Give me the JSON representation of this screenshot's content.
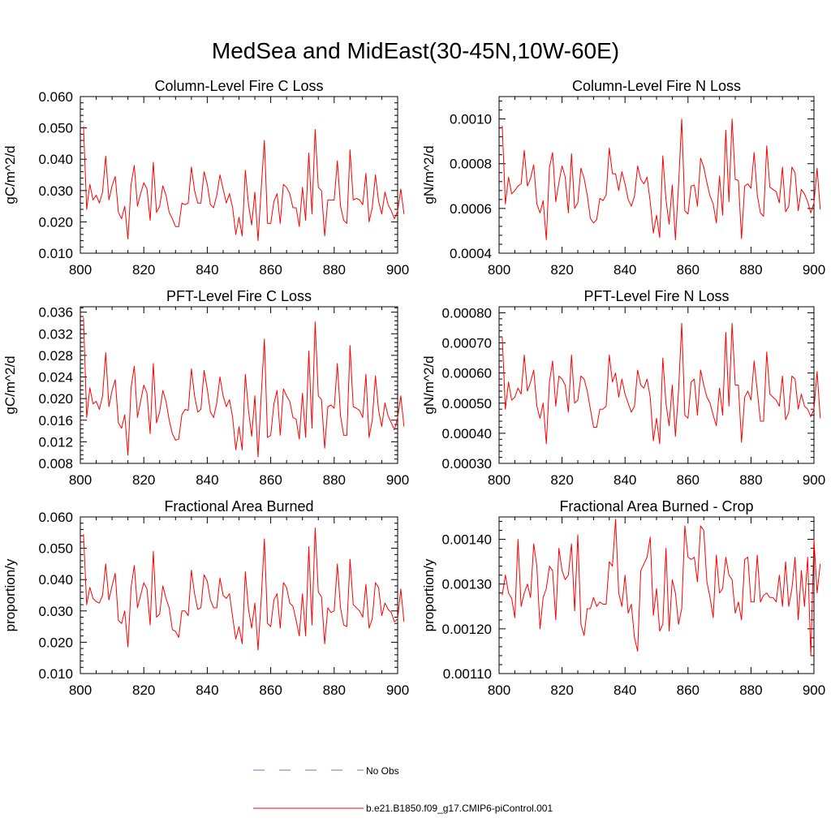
{
  "page_title": "MedSea and MidEast(30-45N,10W-60E)",
  "colors": {
    "model": "#ff0000",
    "obs": "#6f6fd0",
    "axis": "#000000"
  },
  "legend": [
    {
      "label": "No Obs",
      "style": "dashed",
      "color": "#6f6fd0"
    },
    {
      "label": "b.e21.B1850.f09_g17.CMIP6-piControl.001",
      "style": "solid",
      "color": "#ff0000"
    }
  ],
  "chart_data": [
    {
      "type": "line",
      "title": "Column-Level Fire C Loss",
      "ylabel": "gC/m^2/d",
      "xlabel": "",
      "xlim": [
        800,
        900
      ],
      "ylim": [
        0.01,
        0.06
      ],
      "xticks": [
        "800",
        "820",
        "840",
        "860",
        "880",
        "900"
      ],
      "yticks": [
        "0.010",
        "0.020",
        "0.030",
        "0.040",
        "0.050",
        "0.060"
      ],
      "series": [
        {
          "name": "b.e21.B1850.f09_g17.CMIP6-piControl.001",
          "color": "#ff0000",
          "x_start": 801,
          "values": [
            0.0505,
            0.024,
            0.032,
            0.027,
            0.0285,
            0.026,
            0.0295,
            0.041,
            0.027,
            0.0315,
            0.0345,
            0.023,
            0.021,
            0.025,
            0.0145,
            0.032,
            0.038,
            0.025,
            0.029,
            0.0325,
            0.0305,
            0.0205,
            0.039,
            0.023,
            0.025,
            0.0315,
            0.0285,
            0.023,
            0.021,
            0.0185,
            0.0185,
            0.026,
            0.0255,
            0.026,
            0.0375,
            0.03,
            0.026,
            0.026,
            0.036,
            0.032,
            0.0255,
            0.0245,
            0.0285,
            0.035,
            0.0305,
            0.026,
            0.029,
            0.0245,
            0.016,
            0.0215,
            0.0155,
            0.0365,
            0.0255,
            0.019,
            0.0295,
            0.014,
            0.0305,
            0.046,
            0.0195,
            0.0195,
            0.0265,
            0.029,
            0.0195,
            0.032,
            0.031,
            0.029,
            0.0245,
            0.0245,
            0.0185,
            0.031,
            0.0205,
            0.042,
            0.0225,
            0.0495,
            0.031,
            0.03,
            0.0155,
            0.027,
            0.027,
            0.027,
            0.0395,
            0.025,
            0.0205,
            0.0195,
            0.043,
            0.027,
            0.0275,
            0.027,
            0.0255,
            0.0355,
            0.02,
            0.0245,
            0.035,
            0.0265,
            0.0225,
            0.0295,
            0.0255,
            0.0235,
            0.021,
            0.0235,
            0.0305,
            0.0225
          ]
        }
      ]
    },
    {
      "type": "line",
      "title": "Column-Level Fire N Loss",
      "ylabel": "gN/m^2/d",
      "xlabel": "",
      "xlim": [
        800,
        900
      ],
      "ylim": [
        0.0004,
        0.0011
      ],
      "xticks": [
        "800",
        "820",
        "840",
        "860",
        "880",
        "900"
      ],
      "yticks": [
        "0.0004",
        "0.0006",
        "0.0008",
        "0.0010"
      ],
      "series": [
        {
          "name": "b.e21.B1850.f09_g17.CMIP6-piControl.001",
          "color": "#ff0000",
          "x_start": 801,
          "values": [
            0.00097,
            0.00062,
            0.00074,
            0.000665,
            0.00068,
            0.0007,
            0.00071,
            0.00086,
            0.0007,
            0.000735,
            0.000795,
            0.00062,
            0.00058,
            0.000635,
            0.00046,
            0.000785,
            0.00085,
            0.00063,
            0.000715,
            0.00079,
            0.00074,
            0.00058,
            0.000845,
            0.0006,
            0.000625,
            0.00078,
            0.000735,
            0.00066,
            0.000555,
            0.000535,
            0.00055,
            0.000645,
            0.000635,
            0.00066,
            0.00087,
            0.000755,
            0.000755,
            0.00068,
            0.000765,
            0.00071,
            0.00064,
            0.00061,
            0.000655,
            0.00079,
            0.00073,
            0.00071,
            0.00074,
            0.00063,
            0.00049,
            0.00057,
            0.00047,
            0.000835,
            0.00064,
            0.00053,
            0.000705,
            0.00046,
            0.000705,
            0.001,
            0.00059,
            0.000575,
            0.0007,
            0.000705,
            0.00061,
            0.000825,
            0.000785,
            0.000715,
            0.000655,
            0.00062,
            0.000535,
            0.000745,
            0.00057,
            0.00095,
            0.00063,
            0.001,
            0.00073,
            0.000725,
            0.000465,
            0.0007,
            0.00071,
            0.00069,
            0.00085,
            0.00066,
            0.00058,
            0.000565,
            0.00088,
            0.000695,
            0.000685,
            0.000675,
            0.000625,
            0.000785,
            0.000585,
            0.00061,
            0.000785,
            0.00076,
            0.00059,
            0.000685,
            0.000665,
            0.00063,
            0.00058,
            0.000625,
            0.00078,
            0.000595
          ]
        }
      ]
    },
    {
      "type": "line",
      "title": "PFT-Level Fire C Loss",
      "ylabel": "gC/m^2/d",
      "xlabel": "",
      "xlim": [
        800,
        900
      ],
      "ylim": [
        0.008,
        0.037
      ],
      "xticks": [
        "800",
        "820",
        "840",
        "860",
        "880",
        "900"
      ],
      "yticks": [
        "0.008",
        "0.012",
        "0.016",
        "0.020",
        "0.024",
        "0.028",
        "0.032",
        "0.036"
      ],
      "series": [
        {
          "name": "b.e21.B1850.f09_g17.CMIP6-piControl.001",
          "color": "#ff0000",
          "x_start": 801,
          "values": [
            0.035,
            0.0165,
            0.022,
            0.019,
            0.0195,
            0.018,
            0.0205,
            0.0285,
            0.0185,
            0.0215,
            0.0235,
            0.0155,
            0.0145,
            0.017,
            0.0095,
            0.022,
            0.026,
            0.0165,
            0.0195,
            0.0225,
            0.021,
            0.0135,
            0.0265,
            0.0155,
            0.0175,
            0.0215,
            0.0195,
            0.016,
            0.0135,
            0.0123,
            0.0125,
            0.017,
            0.018,
            0.0178,
            0.0255,
            0.0205,
            0.0175,
            0.018,
            0.0252,
            0.0218,
            0.0175,
            0.0165,
            0.0192,
            0.024,
            0.0205,
            0.0185,
            0.0198,
            0.0165,
            0.0105,
            0.0148,
            0.0105,
            0.0245,
            0.0178,
            0.013,
            0.0205,
            0.0092,
            0.0205,
            0.031,
            0.0128,
            0.0132,
            0.019,
            0.0215,
            0.0132,
            0.0218,
            0.0205,
            0.0195,
            0.0165,
            0.0162,
            0.0125,
            0.021,
            0.0128,
            0.0288,
            0.0145,
            0.0342,
            0.0205,
            0.0198,
            0.0108,
            0.0185,
            0.0188,
            0.0182,
            0.0265,
            0.0168,
            0.0132,
            0.0132,
            0.0298,
            0.0185,
            0.0182,
            0.0178,
            0.0165,
            0.0245,
            0.0128,
            0.016,
            0.0242,
            0.0178,
            0.0148,
            0.0192,
            0.0168,
            0.0155,
            0.0142,
            0.0165,
            0.0205,
            0.0148
          ]
        }
      ]
    },
    {
      "type": "line",
      "title": "PFT-Level Fire N Loss",
      "ylabel": "gN/m^2/d",
      "xlabel": "",
      "xlim": [
        800,
        900
      ],
      "ylim": [
        0.0003,
        0.00082
      ],
      "xticks": [
        "800",
        "820",
        "840",
        "860",
        "880",
        "900"
      ],
      "yticks": [
        "0.00030",
        "0.00040",
        "0.00050",
        "0.00060",
        "0.00070",
        "0.00080"
      ],
      "series": [
        {
          "name": "b.e21.B1850.f09_g17.CMIP6-piControl.001",
          "color": "#ff0000",
          "x_start": 801,
          "values": [
            0.00072,
            0.00048,
            0.00057,
            0.00051,
            0.00052,
            0.00055,
            0.00053,
            0.00066,
            0.00054,
            0.00057,
            0.00061,
            0.00049,
            0.00045,
            0.0005,
            0.000365,
            0.00057,
            0.00064,
            0.00049,
            0.00059,
            0.00058,
            0.00056,
            0.00047,
            0.00066,
            0.0005,
            0.00051,
            0.00059,
            0.00058,
            0.00054,
            0.00048,
            0.00042,
            0.00042,
            0.00048,
            0.00048,
            0.00049,
            0.00066,
            0.00057,
            0.0006,
            0.00052,
            0.00058,
            0.00053,
            0.0005,
            0.00047,
            0.00049,
            0.00061,
            0.00056,
            0.00055,
            0.00058,
            0.00052,
            0.000375,
            0.00045,
            0.000365,
            0.00065,
            0.0005,
            0.000425,
            0.00056,
            0.00039,
            0.00054,
            0.000765,
            0.00046,
            0.00045,
            0.00057,
            0.00058,
            0.00046,
            0.00061,
            0.00056,
            0.00052,
            0.0005,
            0.00046,
            0.000425,
            0.00055,
            0.00046,
            0.000735,
            0.00049,
            0.000765,
            0.00056,
            0.00056,
            0.00037,
            0.00052,
            0.00054,
            0.00051,
            0.00064,
            0.00054,
            0.00044,
            0.00044,
            0.00067,
            0.00053,
            0.00052,
            0.00051,
            0.00049,
            0.00059,
            0.000445,
            0.00047,
            0.00059,
            0.00058,
            0.00048,
            0.00053,
            0.00049,
            0.00048,
            0.000455,
            0.00048,
            0.000605,
            0.00045
          ]
        }
      ]
    },
    {
      "type": "line",
      "title": "Fractional Area Burned",
      "ylabel": "proportion/y",
      "xlabel": "",
      "xlim": [
        800,
        900
      ],
      "ylim": [
        0.01,
        0.06
      ],
      "xticks": [
        "800",
        "820",
        "840",
        "860",
        "880",
        "900"
      ],
      "yticks": [
        "0.010",
        "0.020",
        "0.030",
        "0.040",
        "0.050",
        "0.060"
      ],
      "series": [
        {
          "name": "b.e21.B1850.f09_g17.CMIP6-piControl.001",
          "color": "#ff0000",
          "x_start": 801,
          "values": [
            0.0545,
            0.032,
            0.0375,
            0.034,
            0.033,
            0.0325,
            0.035,
            0.045,
            0.0335,
            0.038,
            0.042,
            0.027,
            0.026,
            0.03,
            0.0185,
            0.0375,
            0.0445,
            0.031,
            0.035,
            0.039,
            0.037,
            0.0255,
            0.049,
            0.028,
            0.029,
            0.038,
            0.034,
            0.031,
            0.024,
            0.0235,
            0.0215,
            0.03,
            0.03,
            0.0285,
            0.043,
            0.0355,
            0.0305,
            0.031,
            0.0415,
            0.0395,
            0.0335,
            0.031,
            0.031,
            0.0405,
            0.035,
            0.034,
            0.0355,
            0.028,
            0.021,
            0.025,
            0.0195,
            0.0425,
            0.0305,
            0.0245,
            0.0325,
            0.0175,
            0.0335,
            0.053,
            0.026,
            0.025,
            0.0335,
            0.0355,
            0.0245,
            0.039,
            0.0375,
            0.0325,
            0.0315,
            0.027,
            0.022,
            0.0355,
            0.022,
            0.0505,
            0.0255,
            0.0565,
            0.036,
            0.0345,
            0.0195,
            0.031,
            0.0295,
            0.03,
            0.045,
            0.031,
            0.0255,
            0.025,
            0.0465,
            0.032,
            0.031,
            0.03,
            0.028,
            0.0385,
            0.0245,
            0.0275,
            0.039,
            0.0375,
            0.0285,
            0.0325,
            0.0305,
            0.0295,
            0.0265,
            0.0275,
            0.037,
            0.0265
          ]
        }
      ]
    },
    {
      "type": "line",
      "title": "Fractional Area Burned - Crop",
      "ylabel": "proportion/y",
      "xlabel": "",
      "xlim": [
        800,
        900
      ],
      "ylim": [
        0.0011,
        0.00145
      ],
      "xticks": [
        "800",
        "820",
        "840",
        "860",
        "880",
        "900"
      ],
      "yticks": [
        "0.00110",
        "0.00120",
        "0.00130",
        "0.00140"
      ],
      "series": [
        {
          "name": "b.e21.B1850.f09_g17.CMIP6-piControl.001",
          "color": "#ff0000",
          "x_start": 801,
          "values": [
            0.001275,
            0.00132,
            0.00128,
            0.001268,
            0.001225,
            0.0014,
            0.00125,
            0.00128,
            0.0013,
            0.00127,
            0.00139,
            0.00134,
            0.0012,
            0.00127,
            0.00129,
            0.00134,
            0.00133,
            0.00122,
            0.00138,
            0.00133,
            0.00131,
            0.00132,
            0.00139,
            0.00124,
            0.00141,
            0.00121,
            0.001185,
            0.001245,
            0.001245,
            0.00127,
            0.00125,
            0.00126,
            0.001255,
            0.001255,
            0.00135,
            0.00134,
            0.001445,
            0.00128,
            0.00125,
            0.00132,
            0.001235,
            0.001255,
            0.00118,
            0.00115,
            0.00133,
            0.001345,
            0.00136,
            0.001405,
            0.00123,
            0.00129,
            0.001195,
            0.00121,
            0.00138,
            0.001195,
            0.00131,
            0.00128,
            0.00121,
            0.001245,
            0.00143,
            0.00136,
            0.001355,
            0.00136,
            0.001305,
            0.00143,
            0.00142,
            0.001305,
            0.00127,
            0.001225,
            0.001365,
            0.00128,
            0.00129,
            0.00136,
            0.00132,
            0.00131,
            0.001235,
            0.00126,
            0.00122,
            0.001355,
            0.00136,
            0.00126,
            0.00126,
            0.001365,
            0.00126,
            0.001275,
            0.00128,
            0.00127,
            0.00127,
            0.00126,
            0.00132,
            0.00125,
            0.00135,
            0.00125,
            0.00129,
            0.00136,
            0.00122,
            0.00133,
            0.00125,
            0.00136,
            0.00114,
            0.0014,
            0.00128,
            0.001345
          ]
        }
      ]
    }
  ]
}
